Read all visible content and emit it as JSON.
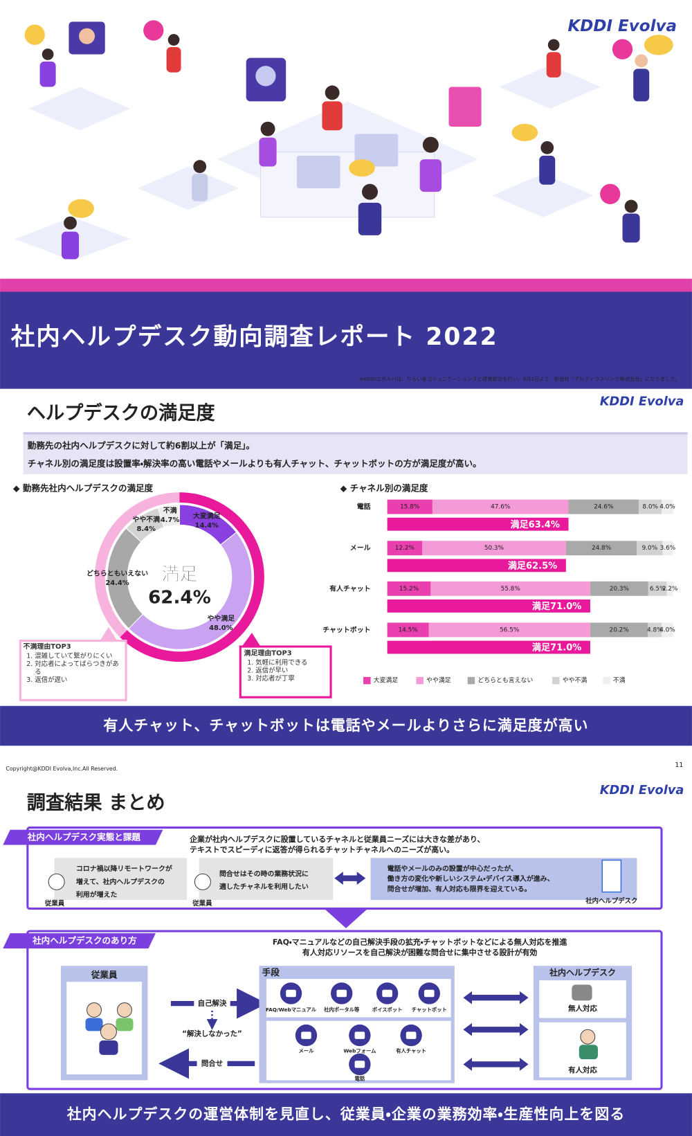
{
  "logo": "KDDI Evolva",
  "cover": {
    "title": "社内ヘルプデスク動向調査レポート 2022",
    "note": "※KDDIエボルバは、りらいあコミュニケーションズと経営統合を行い、9月1日より、新会社「アルティウスリンク株式会社」になりました。"
  },
  "slide1": {
    "heading": "ヘルプデスクの満足度",
    "summary": [
      "勤務先の社内ヘルプデスクに対して約6割以上が「満足」。",
      "チャネル別の満足度は設置率・解決率の高い電話やメールよりも有人チャット、チャットボットの方が満足度が高い。"
    ],
    "donut_heading": "◆  勤務先社内ヘルプデスクの満足度",
    "bars_heading": "◆  チャネル別の満足度",
    "dissatisfied_box": {
      "title": "不満理由TOP3",
      "items": [
        "混雑していて繋がりにくい",
        "対応者によってばらつきがある",
        "返信が遅い"
      ]
    },
    "satisfied_box": {
      "title": "満足理由TOP3",
      "items": [
        "気軽に利用できる",
        "返信が早い",
        "対応者が丁寧"
      ]
    },
    "banner": "有人チャット、チャットボットは電話やメールよりさらに満足度が高い"
  },
  "chart_data": [
    {
      "type": "pie",
      "donut": true,
      "categories": [
        "大変満足",
        "やや満足",
        "どちらともいえない",
        "やや不満",
        "不満"
      ],
      "values": [
        14.4,
        48.0,
        24.4,
        8.4,
        4.7
      ],
      "value_labels": [
        "14.4%",
        "48.0%",
        "24.4%",
        "8.4%",
        "4.7%"
      ],
      "colors": [
        "#8a3fe0",
        "#c9a3f2",
        "#a8a8a8",
        "#d3d3d3",
        "#ededed"
      ],
      "center_label": "満足",
      "center_value": 62.4,
      "center_value_label": "62.4%",
      "ring_color": "#e8199b"
    },
    {
      "type": "bar",
      "orientation": "horizontal",
      "stacked": true,
      "categories": [
        "電話",
        "メール",
        "有人チャット",
        "チャットボット"
      ],
      "xlim": [
        0,
        100
      ],
      "series": [
        {
          "name": "大変満足",
          "color": "#ea3fae",
          "values": [
            15.8,
            12.2,
            15.2,
            14.5
          ],
          "value_labels": [
            "15.8%",
            "12.2%",
            "15.2%",
            "14.5%"
          ]
        },
        {
          "name": "やや満足",
          "color": "#f49ad6",
          "values": [
            47.6,
            50.3,
            55.8,
            56.5
          ],
          "value_labels": [
            "47.6%",
            "50.3%",
            "55.8%",
            "56.5%"
          ]
        },
        {
          "name": "どちらとも言えない",
          "color": "#a9a9a9",
          "values": [
            24.6,
            24.8,
            20.3,
            20.2
          ],
          "value_labels": [
            "24.6%",
            "24.8%",
            "20.3%",
            "20.2%"
          ]
        },
        {
          "name": "やや不満",
          "color": "#d2d2d2",
          "values": [
            8.0,
            9.0,
            6.5,
            4.8
          ],
          "value_labels": [
            "8.0%",
            "9.0%",
            "6.5%",
            "4.8%"
          ]
        },
        {
          "name": "不満",
          "color": "#efefef",
          "values": [
            4.0,
            3.6,
            2.2,
            4.0
          ],
          "value_labels": [
            "4.0%",
            "3.6%",
            "2.2%",
            "4.0%"
          ]
        }
      ],
      "totals": {
        "color": "#e8199b",
        "values": [
          63.4,
          62.5,
          71.0,
          71.0
        ],
        "value_labels": [
          "満足63.4%",
          "満足62.5%",
          "満足71.0%",
          "満足71.0%"
        ]
      },
      "legend": "bottom"
    }
  ],
  "footer": {
    "copyright": "Copyright@KDDI Evolva,Inc.All Reserved.",
    "page": "11"
  },
  "slide2": {
    "heading": "調査結果 まとめ",
    "section1": {
      "tag": "社内ヘルプデスク実態と課題",
      "lead": [
        "企業が社内ヘルプデスクに設置しているチャネルと従業員ニーズには大きな差があり、",
        "テキストでスピーディに返答が得られるチャットチャネルへのニーズが高い。"
      ],
      "voice1": {
        "lines": [
          "コロナ禍以降リモートワークが",
          "増えて、社内ヘルプデスクの",
          "利用が増えた"
        ],
        "caption": "従業員"
      },
      "voice2": {
        "lines": [
          "問合せはその時の業務状況に",
          "適したチャネルを利用したい"
        ],
        "caption": "従業員"
      },
      "status": {
        "lines": [
          "電話やメールのみの設置が中心だったが、",
          "働き方の変化や新しいシステム・デバイス導入が進み、",
          "問合せが増加、有人対応も限界を迎えている。"
        ],
        "caption": "社内ヘルプデスク"
      }
    },
    "section2": {
      "tag": "社内ヘルプデスクのあり方",
      "lead": [
        "FAQ・マニュアルなどの自己解決手段の拡充・チャットボットなどによる無人対応を推進",
        "有人対応リソースを自己解決が困難な問合せに集中させる設計が有効"
      ],
      "employee": "従業員",
      "flow": {
        "self": "自己解決",
        "unsolved": "“解決しなかった”",
        "inquiry": "問合せ"
      },
      "means": {
        "title": "手段",
        "row1": [
          "FAQ/Webマニュアル",
          "社内ポータル等",
          "ボイスボット",
          "チャットボット"
        ],
        "row2": [
          "メール",
          "Webフォーム",
          "有人チャット"
        ],
        "phone": "電話"
      },
      "helpdesk": {
        "title": "社内ヘルプデスク",
        "unmanned": "無人対応",
        "manned": "有人対応"
      }
    },
    "banner": "社内ヘルプデスクの運営体制を見直し、従業員・企業の業務効率・生産性向上を図る"
  }
}
